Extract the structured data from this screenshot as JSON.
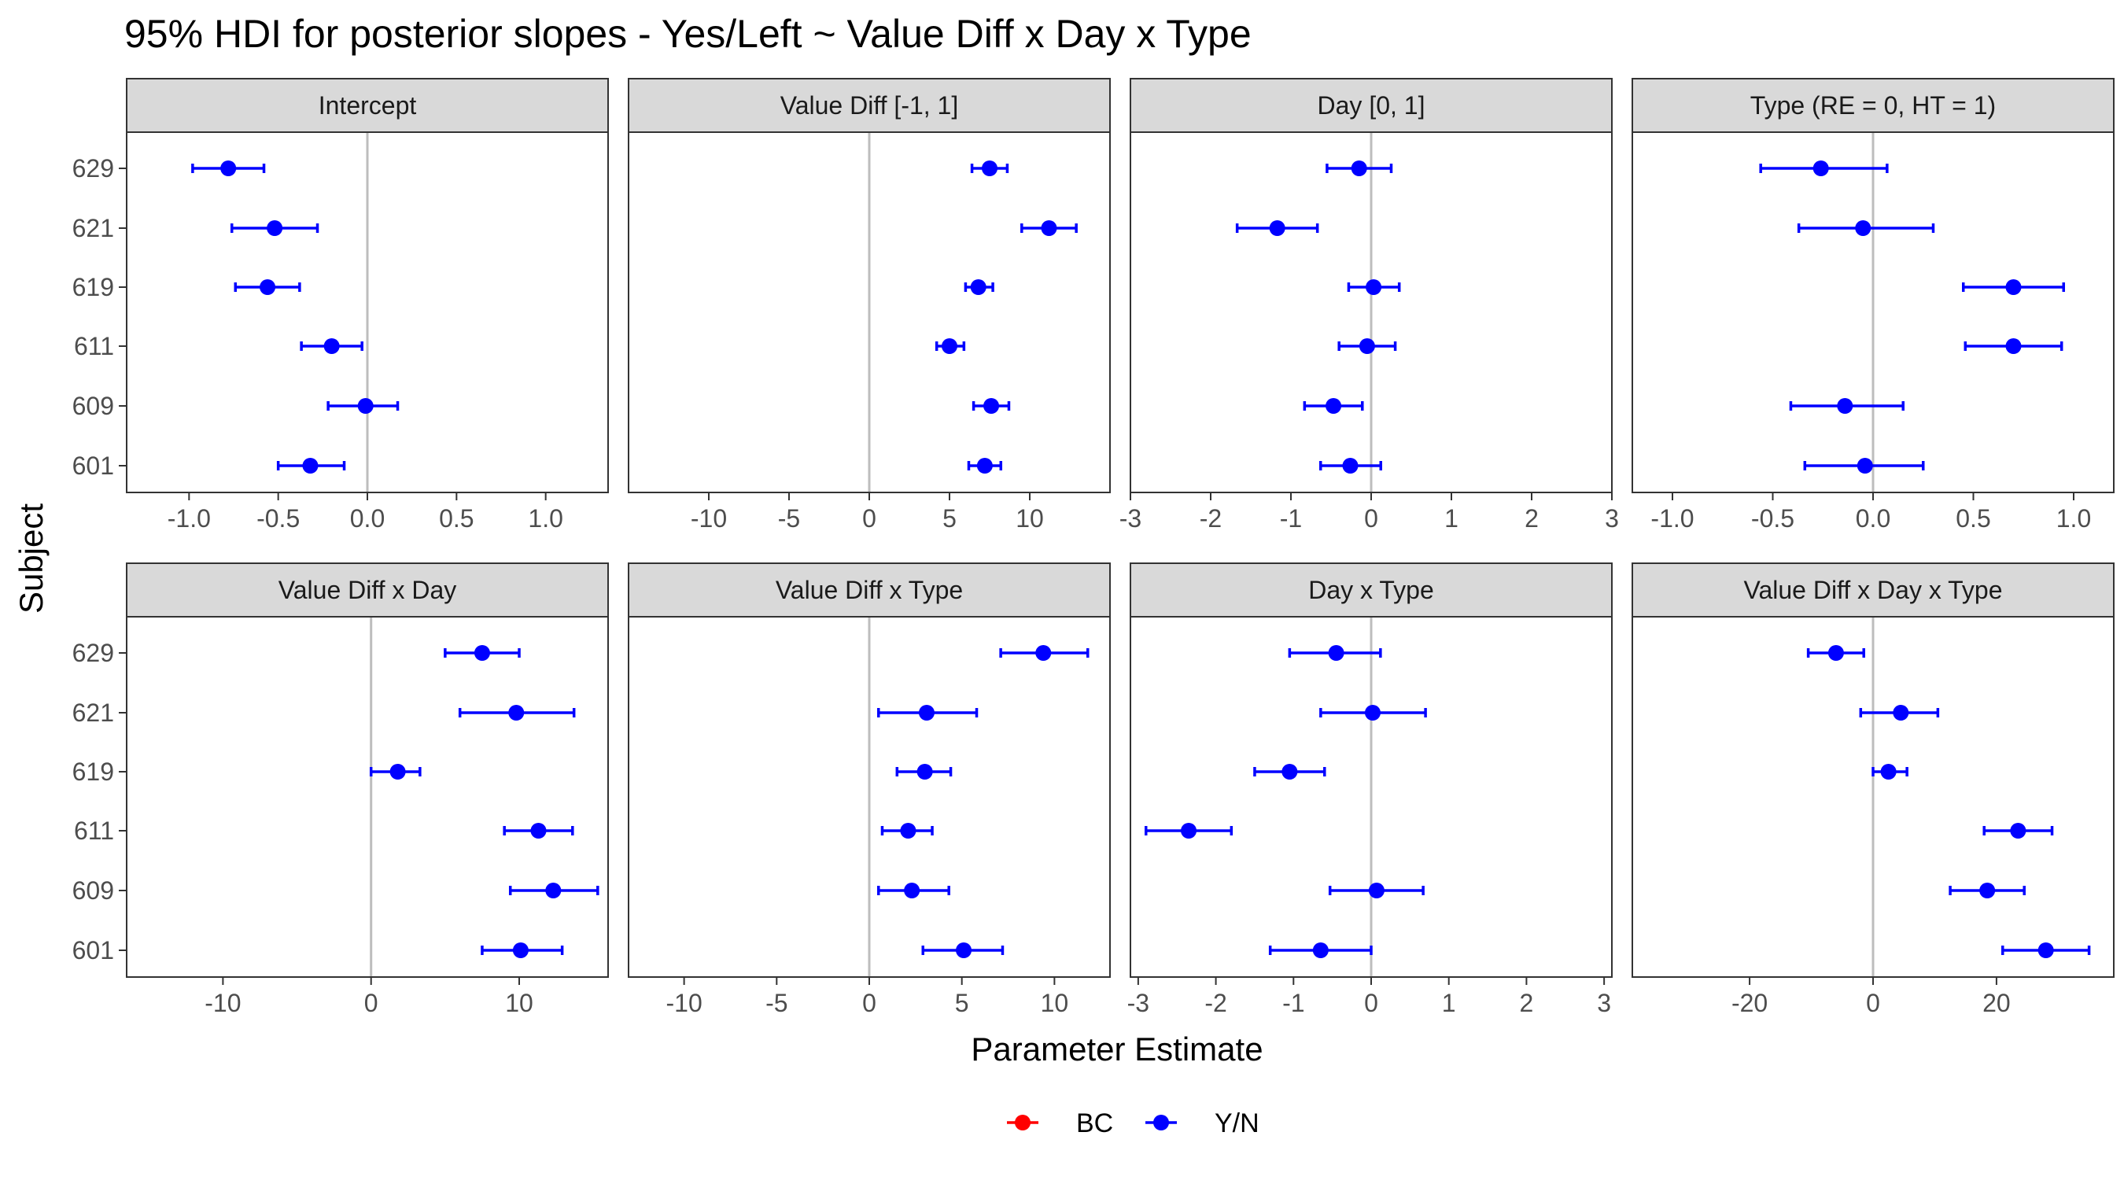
{
  "title": "95% HDI for posterior slopes - Yes/Left ~ Value Diff x Day x Type",
  "xlabel": "Parameter Estimate",
  "ylabel": "Subject",
  "legend": [
    {
      "label": "BC",
      "color": "#ff0000"
    },
    {
      "label": "Y/N",
      "color": "#0000ff"
    }
  ],
  "chart_data": {
    "type": "scatter",
    "subjects": [
      "601",
      "609",
      "611",
      "619",
      "621",
      "629"
    ],
    "series_color": "#0000ff",
    "zero_line_color": "#bdbdbd",
    "strip_fill": "#d9d9d9",
    "facets": [
      {
        "label": "Intercept",
        "xlim": [
          -1.35,
          1.35
        ],
        "ticks": [
          -1.0,
          -0.5,
          0.0,
          0.5,
          1.0
        ],
        "tick_labels": [
          "-1.0",
          "-0.5",
          "0.0",
          "0.5",
          "1.0"
        ],
        "points": [
          {
            "subject": "629",
            "est": -0.78,
            "lo": -0.98,
            "hi": -0.58
          },
          {
            "subject": "621",
            "est": -0.52,
            "lo": -0.76,
            "hi": -0.28
          },
          {
            "subject": "619",
            "est": -0.56,
            "lo": -0.74,
            "hi": -0.38
          },
          {
            "subject": "611",
            "est": -0.2,
            "lo": -0.37,
            "hi": -0.03
          },
          {
            "subject": "609",
            "est": -0.01,
            "lo": -0.22,
            "hi": 0.17
          },
          {
            "subject": "601",
            "est": -0.32,
            "lo": -0.5,
            "hi": -0.13
          }
        ]
      },
      {
        "label": "Value Diff [-1, 1]",
        "xlim": [
          -15,
          15
        ],
        "ticks": [
          -10,
          -5,
          0,
          5,
          10
        ],
        "tick_labels": [
          "-10",
          "-5",
          "0",
          "5",
          "10"
        ],
        "points": [
          {
            "subject": "629",
            "est": 7.5,
            "lo": 6.4,
            "hi": 8.6
          },
          {
            "subject": "621",
            "est": 11.2,
            "lo": 9.5,
            "hi": 12.9
          },
          {
            "subject": "619",
            "est": 6.8,
            "lo": 6.0,
            "hi": 7.7
          },
          {
            "subject": "611",
            "est": 5.0,
            "lo": 4.2,
            "hi": 5.9
          },
          {
            "subject": "609",
            "est": 7.6,
            "lo": 6.5,
            "hi": 8.7
          },
          {
            "subject": "601",
            "est": 7.2,
            "lo": 6.2,
            "hi": 8.2
          }
        ]
      },
      {
        "label": "Day [0, 1]",
        "xlim": [
          -3,
          3
        ],
        "ticks": [
          -3,
          -2,
          -1,
          0,
          1,
          2,
          3
        ],
        "tick_labels": [
          "-3",
          "-2",
          "-1",
          "0",
          "1",
          "2",
          "3"
        ],
        "points": [
          {
            "subject": "629",
            "est": -0.15,
            "lo": -0.55,
            "hi": 0.25
          },
          {
            "subject": "621",
            "est": -1.17,
            "lo": -1.67,
            "hi": -0.67
          },
          {
            "subject": "619",
            "est": 0.03,
            "lo": -0.28,
            "hi": 0.35
          },
          {
            "subject": "611",
            "est": -0.05,
            "lo": -0.4,
            "hi": 0.3
          },
          {
            "subject": "609",
            "est": -0.47,
            "lo": -0.83,
            "hi": -0.11
          },
          {
            "subject": "601",
            "est": -0.26,
            "lo": -0.63,
            "hi": 0.12
          }
        ]
      },
      {
        "label": "Type (RE = 0, HT = 1)",
        "xlim": [
          -1.2,
          1.2
        ],
        "ticks": [
          -1.0,
          -0.5,
          0.0,
          0.5,
          1.0
        ],
        "tick_labels": [
          "-1.0",
          "-0.5",
          "0.0",
          "0.5",
          "1.0"
        ],
        "points": [
          {
            "subject": "629",
            "est": -0.26,
            "lo": -0.56,
            "hi": 0.07
          },
          {
            "subject": "621",
            "est": -0.05,
            "lo": -0.37,
            "hi": 0.3
          },
          {
            "subject": "619",
            "est": 0.7,
            "lo": 0.45,
            "hi": 0.95
          },
          {
            "subject": "611",
            "est": 0.7,
            "lo": 0.46,
            "hi": 0.94
          },
          {
            "subject": "609",
            "est": -0.14,
            "lo": -0.41,
            "hi": 0.15
          },
          {
            "subject": "601",
            "est": -0.04,
            "lo": -0.34,
            "hi": 0.25
          }
        ]
      },
      {
        "label": "Value Diff x Day",
        "xlim": [
          -16.5,
          16
        ],
        "ticks": [
          -10,
          0,
          10
        ],
        "tick_labels": [
          "-10",
          "0",
          "10"
        ],
        "points": [
          {
            "subject": "629",
            "est": 7.5,
            "lo": 5.0,
            "hi": 10.0
          },
          {
            "subject": "621",
            "est": 9.8,
            "lo": 6.0,
            "hi": 13.7
          },
          {
            "subject": "619",
            "est": 1.8,
            "lo": 0.0,
            "hi": 3.3
          },
          {
            "subject": "611",
            "est": 11.3,
            "lo": 9.0,
            "hi": 13.6
          },
          {
            "subject": "609",
            "est": 12.3,
            "lo": 9.4,
            "hi": 15.3
          },
          {
            "subject": "601",
            "est": 10.1,
            "lo": 7.5,
            "hi": 12.9
          }
        ]
      },
      {
        "label": "Value Diff x Type",
        "xlim": [
          -13,
          13
        ],
        "ticks": [
          -10,
          -5,
          0,
          5,
          10
        ],
        "tick_labels": [
          "-10",
          "-5",
          "0",
          "5",
          "10"
        ],
        "points": [
          {
            "subject": "629",
            "est": 9.4,
            "lo": 7.1,
            "hi": 11.8
          },
          {
            "subject": "621",
            "est": 3.1,
            "lo": 0.5,
            "hi": 5.8
          },
          {
            "subject": "619",
            "est": 3.0,
            "lo": 1.5,
            "hi": 4.4
          },
          {
            "subject": "611",
            "est": 2.1,
            "lo": 0.7,
            "hi": 3.4
          },
          {
            "subject": "609",
            "est": 2.3,
            "lo": 0.5,
            "hi": 4.3
          },
          {
            "subject": "601",
            "est": 5.1,
            "lo": 2.9,
            "hi": 7.2
          }
        ]
      },
      {
        "label": "Day x Type",
        "xlim": [
          -3.1,
          3.1
        ],
        "ticks": [
          -3,
          -2,
          -1,
          0,
          1,
          2,
          3
        ],
        "tick_labels": [
          "-3",
          "-2",
          "-1",
          "0",
          "1",
          "2",
          "3"
        ],
        "points": [
          {
            "subject": "629",
            "est": -0.45,
            "lo": -1.05,
            "hi": 0.12
          },
          {
            "subject": "621",
            "est": 0.02,
            "lo": -0.65,
            "hi": 0.7
          },
          {
            "subject": "619",
            "est": -1.05,
            "lo": -1.5,
            "hi": -0.6
          },
          {
            "subject": "611",
            "est": -2.35,
            "lo": -2.9,
            "hi": -1.8
          },
          {
            "subject": "609",
            "est": 0.07,
            "lo": -0.53,
            "hi": 0.67
          },
          {
            "subject": "601",
            "est": -0.65,
            "lo": -1.3,
            "hi": 0.0
          }
        ]
      },
      {
        "label": "Value Diff x Day x Type",
        "xlim": [
          -39,
          39
        ],
        "ticks": [
          -20,
          0,
          20
        ],
        "tick_labels": [
          "-20",
          "0",
          "20"
        ],
        "points": [
          {
            "subject": "629",
            "est": -6.0,
            "lo": -10.5,
            "hi": -1.5
          },
          {
            "subject": "621",
            "est": 4.5,
            "lo": -2.0,
            "hi": 10.5
          },
          {
            "subject": "619",
            "est": 2.5,
            "lo": 0.0,
            "hi": 5.5
          },
          {
            "subject": "611",
            "est": 23.5,
            "lo": 18.0,
            "hi": 29.0
          },
          {
            "subject": "609",
            "est": 18.5,
            "lo": 12.5,
            "hi": 24.5
          },
          {
            "subject": "601",
            "est": 28.0,
            "lo": 21.0,
            "hi": 35.0
          }
        ]
      }
    ]
  }
}
